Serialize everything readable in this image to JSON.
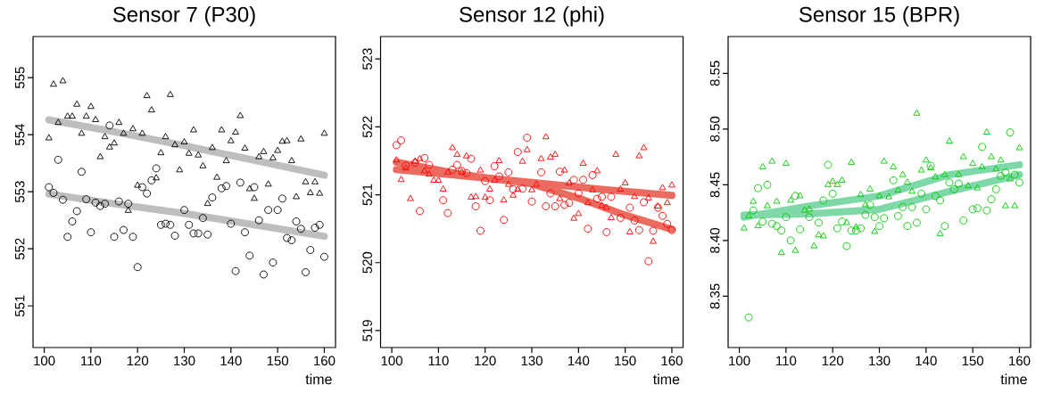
{
  "chart_data": [
    {
      "type": "scatter",
      "title": "Sensor 7 (P30)",
      "xlabel": "time",
      "xlim": [
        97.6,
        162.4
      ],
      "xticks": [
        100,
        110,
        120,
        130,
        140,
        150,
        160
      ],
      "ylim": [
        550.27,
        555.72
      ],
      "yticks": [
        551,
        552,
        553,
        554,
        555
      ],
      "grid": false,
      "series": [
        {
          "type": "line",
          "color": "#bebebe",
          "x": [
            101,
            115,
            130,
            145,
            160
          ],
          "values": [
            554.26,
            554.05,
            553.81,
            553.55,
            553.29
          ]
        },
        {
          "type": "line",
          "color": "#bebebe",
          "x": [
            101,
            115,
            130,
            145,
            160
          ],
          "values": [
            552.96,
            552.79,
            552.62,
            552.42,
            552.22
          ]
        },
        {
          "type": "scatter",
          "marker": "triangle",
          "color": "#000000",
          "x": [
            101,
            102,
            103,
            104,
            105,
            106,
            107,
            108,
            109,
            110,
            111,
            112,
            113,
            114,
            115,
            116,
            117,
            118,
            119,
            120,
            121,
            122,
            123,
            124,
            125,
            126,
            127,
            128,
            129,
            130,
            131,
            132,
            133,
            134,
            135,
            136,
            137,
            138,
            139,
            140,
            141,
            142,
            143,
            144,
            145,
            146,
            147,
            148,
            149,
            150,
            151,
            152,
            153,
            154,
            155,
            156,
            157,
            158,
            159,
            160
          ],
          "values": [
            553.94,
            554.88,
            554.21,
            554.94,
            554.32,
            554.32,
            554.53,
            554.02,
            554.32,
            554.49,
            554.26,
            553.61,
            553.96,
            553.78,
            553.85,
            554.21,
            554.02,
            552.67,
            554.1,
            553.11,
            554.02,
            554.68,
            554.43,
            553.24,
            553.68,
            553.96,
            554.7,
            553.82,
            553.38,
            553.87,
            553.67,
            554.08,
            553.64,
            553.45,
            552.79,
            553.77,
            553.25,
            554.08,
            553.54,
            553.89,
            554.04,
            554.33,
            553.76,
            553.05,
            552.88,
            553.61,
            553.7,
            553.13,
            553.59,
            553.72,
            553.88,
            553.89,
            553.54,
            552.91,
            553.92,
            553.17,
            552.98,
            553.17,
            552.97,
            554.02
          ]
        },
        {
          "type": "scatter",
          "marker": "circle",
          "color": "#000000",
          "x": [
            101,
            102,
            103,
            104,
            105,
            106,
            107,
            108,
            109,
            110,
            111,
            112,
            113,
            114,
            115,
            116,
            117,
            118,
            119,
            120,
            121,
            122,
            123,
            124,
            125,
            126,
            127,
            128,
            130,
            131,
            132,
            133,
            134,
            135,
            136,
            138,
            139,
            140,
            141,
            142,
            143,
            144,
            145,
            146,
            147,
            148,
            149,
            150,
            151,
            152,
            153,
            154,
            155,
            156,
            157,
            158,
            159,
            160
          ],
          "values": [
            553.08,
            552.98,
            553.56,
            552.86,
            552.21,
            552.48,
            552.66,
            553.35,
            552.87,
            552.29,
            552.81,
            552.75,
            552.79,
            554.16,
            552.21,
            552.83,
            552.33,
            552.79,
            552.21,
            551.68,
            553.08,
            552.97,
            553.2,
            553.41,
            552.42,
            552.44,
            552.42,
            552.23,
            552.68,
            552.42,
            552.27,
            552.27,
            552.54,
            552.25,
            552.9,
            553.06,
            553.1,
            552.44,
            551.61,
            553.16,
            552.29,
            551.88,
            553.08,
            552.5,
            551.55,
            552.68,
            551.76,
            552.68,
            552.88,
            552.19,
            552.15,
            552.48,
            552.35,
            551.59,
            551.98,
            552.37,
            552.42,
            551.86
          ]
        }
      ]
    },
    {
      "type": "scatter",
      "title": "Sensor 12 (phi)",
      "xlabel": "time",
      "xlim": [
        97.6,
        162.4
      ],
      "xticks": [
        100,
        110,
        120,
        130,
        140,
        150,
        160
      ],
      "ylim": [
        518.75,
        523.33
      ],
      "yticks": [
        519,
        520,
        521,
        522,
        523
      ],
      "grid": false,
      "series": [
        {
          "type": "line",
          "color": "#ec6b60",
          "x": [
            101,
            115,
            130,
            145,
            160
          ],
          "values": [
            521.37,
            521.28,
            521.18,
            521.08,
            520.99
          ]
        },
        {
          "type": "line",
          "color": "#ec6b60",
          "x": [
            101,
            115,
            130,
            140,
            150,
            160
          ],
          "values": [
            521.48,
            521.3,
            521.16,
            520.95,
            520.7,
            520.49
          ]
        },
        {
          "type": "scatter",
          "marker": "triangle",
          "color": "#ff0000",
          "x": [
            101,
            102,
            103,
            104,
            105,
            106,
            107,
            108,
            109,
            110,
            111,
            112,
            113,
            114,
            115,
            116,
            117,
            118,
            119,
            120,
            121,
            122,
            123,
            124,
            125,
            126,
            127,
            128,
            129,
            130,
            131,
            132,
            133,
            134,
            135,
            136,
            137,
            138,
            139,
            140,
            141,
            142,
            143,
            144,
            145,
            146,
            147,
            148,
            149,
            150,
            151,
            152,
            153,
            154,
            155,
            156,
            157,
            158,
            159,
            160
          ],
          "values": [
            521.51,
            521.22,
            521.39,
            520.94,
            521.49,
            521.53,
            521.35,
            521.3,
            521.21,
            521.21,
            521.08,
            521.33,
            521.69,
            521.59,
            521.33,
            521.57,
            520.96,
            520.97,
            521.36,
            520.96,
            521.08,
            521.21,
            521.5,
            520.92,
            521.15,
            520.99,
            521.08,
            521.49,
            521.66,
            521.07,
            521.15,
            521.53,
            521.85,
            521.55,
            521.59,
            520.94,
            521.36,
            521.17,
            520.65,
            520.72,
            521.46,
            520.88,
            521.07,
            521.35,
            520.84,
            520.81,
            520.66,
            521.59,
            521.08,
            521.17,
            520.45,
            520.97,
            521.57,
            521.69,
            520.95,
            520.31,
            520.83,
            521.1,
            520.88,
            521.14
          ]
        },
        {
          "type": "scatter",
          "marker": "circle",
          "color": "#ff0000",
          "x": [
            101,
            102,
            103,
            105,
            106,
            107,
            108,
            111,
            112,
            113,
            114,
            115,
            116,
            117,
            118,
            119,
            120,
            121,
            122,
            123,
            124,
            125,
            126,
            127,
            128,
            129,
            130,
            132,
            133,
            134,
            135,
            136,
            137,
            138,
            139,
            140,
            141,
            142,
            143,
            144,
            145,
            146,
            147,
            149,
            151,
            152,
            153,
            154,
            155,
            156,
            157,
            158,
            159,
            160
          ],
          "values": [
            521.73,
            521.8,
            521.43,
            521.47,
            520.76,
            521.54,
            521.44,
            520.92,
            520.73,
            521.37,
            521.44,
            521.35,
            521.32,
            521.53,
            520.83,
            520.47,
            521.2,
            520.92,
            521.42,
            521.27,
            520.63,
            521.33,
            521.08,
            521.63,
            521.09,
            521.84,
            520.9,
            521.33,
            520.83,
            521.02,
            520.83,
            521.34,
            520.85,
            520.88,
            521.22,
            521.02,
            521.22,
            520.5,
            521.29,
            520.94,
            520.97,
            520.45,
            520.97,
            520.66,
            520.81,
            520.62,
            520.48,
            520.89,
            520.02,
            520.47,
            520.81,
            520.69,
            520.57,
            520.48
          ]
        }
      ]
    },
    {
      "type": "scatter",
      "title": "Sensor 15 (BPR)",
      "xlabel": "time",
      "xlim": [
        97.6,
        162.4
      ],
      "xticks": [
        100,
        110,
        120,
        130,
        140,
        150,
        160
      ],
      "ylim": [
        8.304,
        8.583
      ],
      "yticks": [
        {
          "value": 8.35,
          "label": "8.35"
        },
        {
          "value": 8.4,
          "label": "8.40"
        },
        {
          "value": 8.45,
          "label": "8.45"
        },
        {
          "value": 8.5,
          "label": "8.50"
        },
        {
          "value": 8.55,
          "label": "8.55"
        }
      ],
      "grid": false,
      "series": [
        {
          "type": "line",
          "color": "#7fd8a8",
          "x": [
            101,
            115,
            130,
            145,
            160
          ],
          "values": [
            8.421,
            8.431,
            8.44,
            8.459,
            8.468
          ]
        },
        {
          "type": "line",
          "color": "#7fd8a8",
          "x": [
            101,
            115,
            130,
            145,
            160
          ],
          "values": [
            8.423,
            8.424,
            8.428,
            8.444,
            8.459
          ]
        },
        {
          "type": "scatter",
          "marker": "triangle",
          "color": "#00cc00",
          "x": [
            101,
            102,
            103,
            104,
            105,
            106,
            107,
            108,
            109,
            110,
            111,
            112,
            113,
            114,
            115,
            116,
            117,
            118,
            119,
            120,
            121,
            122,
            123,
            124,
            125,
            126,
            127,
            128,
            129,
            130,
            131,
            132,
            133,
            134,
            135,
            136,
            137,
            138,
            139,
            140,
            141,
            142,
            143,
            144,
            145,
            147,
            148,
            149,
            150,
            151,
            152,
            153,
            154,
            155,
            156,
            157,
            158,
            159,
            160
          ],
          "values": [
            8.411,
            8.422,
            8.435,
            8.413,
            8.466,
            8.431,
            8.471,
            8.435,
            8.389,
            8.469,
            8.436,
            8.391,
            8.44,
            8.427,
            8.428,
            8.395,
            8.405,
            8.404,
            8.45,
            8.453,
            8.45,
            8.454,
            8.416,
            8.47,
            8.412,
            8.441,
            8.432,
            8.446,
            8.408,
            8.44,
            8.471,
            8.439,
            8.466,
            8.445,
            8.459,
            8.452,
            8.444,
            8.514,
            8.463,
            8.472,
            8.465,
            8.457,
            8.406,
            8.459,
            8.489,
            8.459,
            8.475,
            8.449,
            8.469,
            8.447,
            8.466,
            8.497,
            8.475,
            8.464,
            8.472,
            8.431,
            8.455,
            8.431,
            8.483
          ]
        },
        {
          "type": "scatter",
          "marker": "circle",
          "color": "#00cc00",
          "x": [
            102,
            103,
            104,
            105,
            106,
            107,
            108,
            109,
            110,
            111,
            112,
            113,
            115,
            117,
            118,
            119,
            120,
            121,
            122,
            123,
            124,
            125,
            126,
            127,
            128,
            129,
            130,
            131,
            133,
            134,
            135,
            136,
            137,
            138,
            139,
            140,
            141,
            142,
            143,
            144,
            145,
            146,
            147,
            148,
            150,
            151,
            152,
            153,
            154,
            155,
            156,
            157,
            158,
            159,
            160
          ],
          "values": [
            8.331,
            8.427,
            8.447,
            8.417,
            8.45,
            8.415,
            8.413,
            8.409,
            8.421,
            8.4,
            8.44,
            8.41,
            8.421,
            8.416,
            8.436,
            8.468,
            8.442,
            8.411,
            8.417,
            8.395,
            8.409,
            8.409,
            8.411,
            8.423,
            8.432,
            8.421,
            8.413,
            8.42,
            8.454,
            8.422,
            8.43,
            8.413,
            8.43,
            8.416,
            8.442,
            8.428,
            8.467,
            8.44,
            8.436,
            8.413,
            8.452,
            8.446,
            8.451,
            8.418,
            8.428,
            8.429,
            8.484,
            8.427,
            8.437,
            8.446,
            8.458,
            8.461,
            8.497,
            8.459,
            8.452
          ]
        }
      ]
    }
  ]
}
